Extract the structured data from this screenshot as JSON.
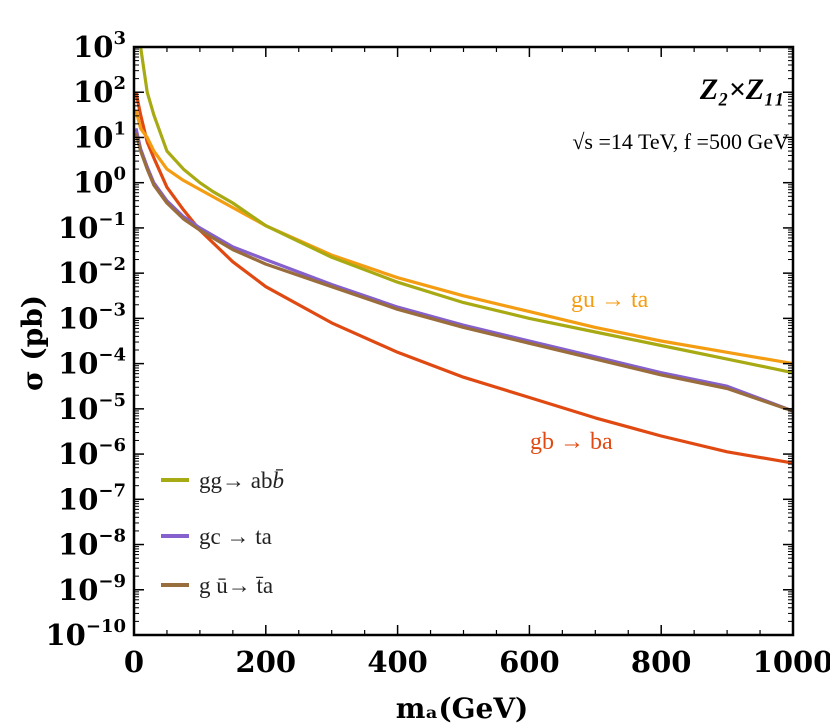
{
  "chart_data": {
    "type": "line",
    "title": "Z₂×Z₁₁",
    "subtitle": "√s =14 TeV, f =500 GeV",
    "xlabel": "mₐ(GeV)",
    "ylabel": "σ (pb)",
    "xlim": [
      0,
      1000
    ],
    "ylim_log10": [
      -10,
      3
    ],
    "y_scale": "log",
    "x_ticks": [
      "0",
      "200",
      "400",
      "600",
      "800",
      "1000"
    ],
    "y_tick_exponents": [
      "3",
      "2",
      "1",
      "0",
      "−1",
      "−2",
      "−3",
      "−4",
      "−5",
      "−6",
      "−7",
      "−8",
      "−9",
      "−10"
    ],
    "y_tick_base": "10",
    "series": [
      {
        "name": "gg→ ab b̄",
        "color": "#a8aa14",
        "x": [
          10,
          20,
          30,
          50,
          75,
          100,
          120,
          150,
          200,
          300,
          400,
          500,
          600,
          700,
          800,
          900,
          1000
        ],
        "log10_y": [
          3,
          2.0,
          1.5,
          0.7,
          0.3,
          0.0,
          -0.2,
          -0.45,
          -0.95,
          -1.65,
          -2.2,
          -2.65,
          -3.0,
          -3.3,
          -3.6,
          -3.9,
          -4.2
        ]
      },
      {
        "name": "gc → ta",
        "color": "#8660cc",
        "x": [
          3,
          10,
          20,
          30,
          50,
          75,
          100,
          150,
          200,
          300,
          400,
          500,
          600,
          700,
          800,
          900,
          1000
        ],
        "log10_y": [
          1.2,
          0.75,
          0.35,
          0.0,
          -0.4,
          -0.75,
          -1.0,
          -1.42,
          -1.7,
          -2.25,
          -2.75,
          -3.15,
          -3.5,
          -3.85,
          -4.2,
          -4.5,
          -5.05
        ]
      },
      {
        "name": "g ū→ t̄a",
        "color": "#9a6d3c",
        "x": [
          3,
          10,
          20,
          30,
          50,
          75,
          100,
          150,
          200,
          300,
          400,
          500,
          600,
          700,
          800,
          900,
          1000
        ],
        "log10_y": [
          1.1,
          0.7,
          0.3,
          -0.05,
          -0.45,
          -0.8,
          -1.05,
          -1.48,
          -1.8,
          -2.3,
          -2.8,
          -3.2,
          -3.55,
          -3.9,
          -4.25,
          -4.55,
          -5.05
        ]
      }
    ],
    "annotated_series": [
      {
        "name": "gu → ta",
        "color": "#f49d12",
        "x": [
          3,
          10,
          20,
          30,
          50,
          75,
          100,
          150,
          200,
          300,
          400,
          500,
          600,
          700,
          800,
          900,
          1000
        ],
        "log10_y": [
          1.6,
          1.2,
          1.0,
          0.7,
          0.3,
          0.05,
          -0.15,
          -0.55,
          -0.95,
          -1.6,
          -2.1,
          -2.5,
          -2.85,
          -3.2,
          -3.5,
          -3.75,
          -4.0
        ]
      },
      {
        "name": "gb → ba",
        "color": "#e04a12",
        "x": [
          3,
          10,
          20,
          30,
          50,
          75,
          100,
          150,
          200,
          300,
          400,
          500,
          600,
          700,
          800,
          900,
          1000
        ],
        "log10_y": [
          2.0,
          1.5,
          0.9,
          0.55,
          -0.1,
          -0.6,
          -1.05,
          -1.75,
          -2.3,
          -3.1,
          -3.75,
          -4.3,
          -4.75,
          -5.2,
          -5.6,
          -5.95,
          -6.2
        ]
      }
    ],
    "legend": [
      {
        "label_main": "gg→ ab",
        "label_tail": "b̄",
        "color": "#a8aa14"
      },
      {
        "label_main": "gc → ta",
        "label_tail": "",
        "color": "#8660cc"
      },
      {
        "label_main": "g ū→ t̄a",
        "label_tail": "",
        "color": "#9a6d3c"
      }
    ],
    "legend_position": "bottom-left",
    "grid": false
  }
}
